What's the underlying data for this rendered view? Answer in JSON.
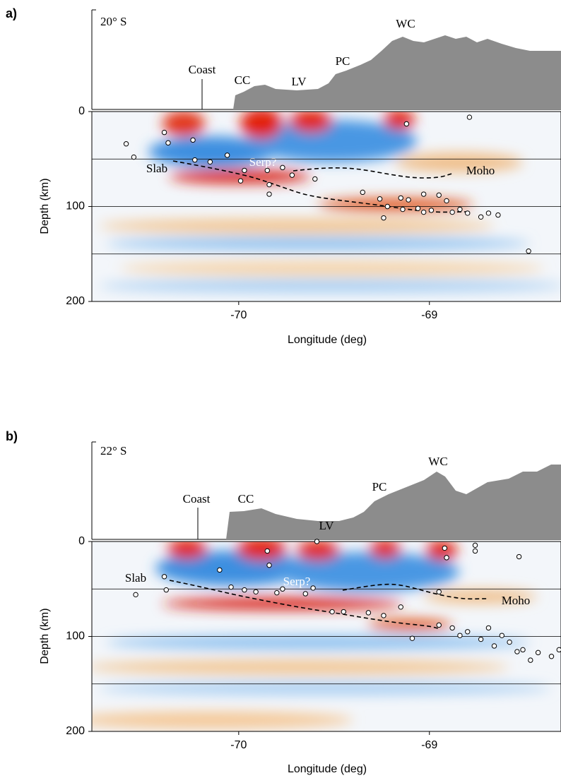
{
  "chart_data": [
    {
      "type": "scatter",
      "panel_label": "a)",
      "latitude_label": "20° S",
      "topo_labels": {
        "coast": "Coast",
        "cc": "CC",
        "lv": "LV",
        "pc": "PC",
        "wc": "WC"
      },
      "image_labels": {
        "slab": "Slab",
        "serp": "Serp?",
        "moho": "Moho"
      },
      "x_label": "Longitude (deg)",
      "y_label": "Depth (km)",
      "xlim": [
        -70.77,
        -68.31
      ],
      "ylim": [
        0,
        200
      ],
      "y_inverted": true,
      "xticks": [
        -70,
        -69
      ],
      "yticks": [
        0,
        100,
        200
      ],
      "hlines": [
        50,
        100,
        150
      ],
      "marker_color": "#ffffff",
      "x": [
        -70.59,
        -70.55,
        -70.39,
        -70.37,
        -70.24,
        -70.23,
        -70.15,
        -70.06,
        -69.99,
        -69.97,
        -69.85,
        -69.84,
        -69.84,
        -69.77,
        -69.72,
        -69.6,
        -69.35,
        -69.26,
        -69.22,
        -69.24,
        -69.12,
        -69.15,
        -69.11,
        -69.03,
        -68.95,
        -68.91,
        -68.79,
        -68.48,
        -68.64,
        -68.69,
        -68.73,
        -68.84,
        -68.99,
        -69.06,
        -69.14,
        -68.88,
        -68.8,
        -69.03
      ],
      "values": [
        34,
        48,
        22,
        33,
        30,
        51,
        53,
        46,
        73,
        62,
        62,
        77,
        87,
        59,
        67,
        71,
        85,
        92,
        100,
        112,
        13,
        91,
        93,
        87,
        88,
        94,
        6,
        147,
        109,
        107,
        111,
        103,
        104,
        102,
        103,
        106,
        107,
        106
      ]
    },
    {
      "type": "scatter",
      "panel_label": "b)",
      "latitude_label": "22° S",
      "topo_labels": {
        "coast": "Coast",
        "cc": "CC",
        "lv": "LV",
        "pc": "PC",
        "wc": "WC"
      },
      "image_labels": {
        "slab": "Slab",
        "serp": "Serp?",
        "moho": "Moho"
      },
      "x_label": "Longitude (deg)",
      "y_label": "Depth (km)",
      "xlim": [
        -70.77,
        -68.31
      ],
      "ylim": [
        0,
        200
      ],
      "y_inverted": true,
      "xticks": [
        -70,
        -69
      ],
      "yticks": [
        0,
        100,
        200
      ],
      "hlines": [
        50,
        100,
        150
      ],
      "marker_color": "#ffffff",
      "x": [
        -70.54,
        -70.39,
        -70.38,
        -70.1,
        -70.04,
        -69.97,
        -69.91,
        -69.85,
        -69.84,
        -69.8,
        -69.77,
        -69.65,
        -69.61,
        -69.59,
        -69.51,
        -69.45,
        -69.32,
        -69.24,
        -69.15,
        -69.09,
        -68.95,
        -68.92,
        -68.91,
        -68.95,
        -68.76,
        -68.76,
        -68.53,
        -68.84,
        -68.73,
        -68.66,
        -68.58,
        -68.51,
        -68.43,
        -68.36,
        -68.32,
        -68.8,
        -68.88,
        -68.62,
        -68.47,
        -68.69,
        -68.54
      ],
      "values": [
        56,
        37,
        51,
        30,
        48,
        51,
        53,
        10,
        25,
        54,
        50,
        55,
        49,
        0,
        74,
        74,
        75,
        78,
        69,
        102,
        88,
        7,
        17,
        53,
        4,
        10,
        16,
        99,
        103,
        110,
        106,
        114,
        117,
        121,
        114,
        95,
        91,
        99,
        125,
        91,
        116
      ]
    }
  ]
}
